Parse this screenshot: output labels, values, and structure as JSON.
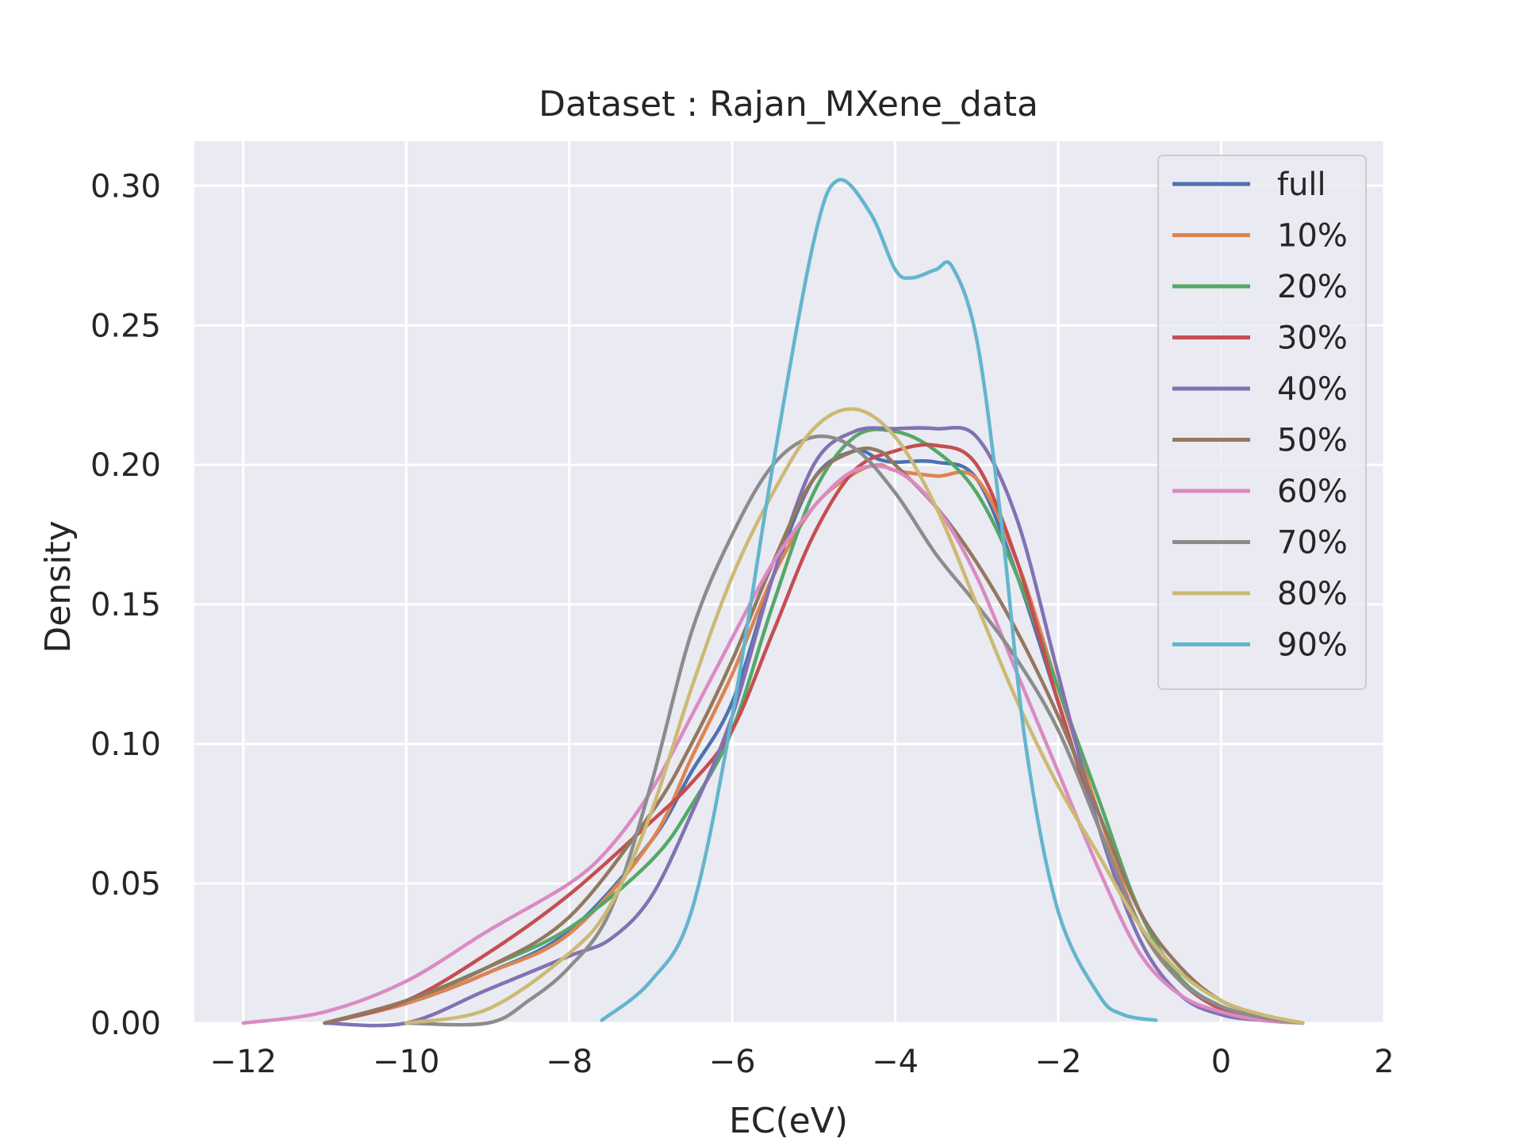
{
  "chart_data": {
    "type": "line",
    "title": "Dataset : Rajan_MXene_data",
    "xlabel": "EC(eV)",
    "ylabel": "Density",
    "xlim": [
      -12.6,
      2.0
    ],
    "ylim": [
      0,
      0.316
    ],
    "x_ticks": [
      -12,
      -10,
      -8,
      -6,
      -4,
      -2,
      0,
      2
    ],
    "x_tick_labels": [
      "−12",
      "−10",
      "−8",
      "−6",
      "−4",
      "−2",
      "0",
      "2"
    ],
    "y_ticks": [
      0.0,
      0.05,
      0.1,
      0.15,
      0.2,
      0.25,
      0.3
    ],
    "y_tick_labels": [
      "0.00",
      "0.05",
      "0.10",
      "0.15",
      "0.20",
      "0.25",
      "0.30"
    ],
    "grid": true,
    "legend_position": "top-right",
    "series": [
      {
        "name": "full",
        "color": "#4c72b0",
        "x": [
          -11.0,
          -10.0,
          -9.0,
          -8.0,
          -7.0,
          -6.5,
          -6.0,
          -5.5,
          -5.0,
          -4.5,
          -4.2,
          -4.0,
          -3.5,
          -3.0,
          -2.5,
          -2.0,
          -1.5,
          -1.0,
          -0.5,
          0.0,
          0.5,
          1.0
        ],
        "y": [
          0.0,
          0.007,
          0.018,
          0.033,
          0.065,
          0.09,
          0.115,
          0.16,
          0.195,
          0.205,
          0.202,
          0.201,
          0.201,
          0.195,
          0.16,
          0.115,
          0.07,
          0.035,
          0.015,
          0.006,
          0.002,
          0.0
        ]
      },
      {
        "name": "10%",
        "color": "#dd8452",
        "x": [
          -11.0,
          -10.0,
          -9.0,
          -8.0,
          -7.0,
          -6.5,
          -6.0,
          -5.5,
          -5.0,
          -4.5,
          -4.2,
          -4.0,
          -3.5,
          -3.0,
          -2.5,
          -2.0,
          -1.5,
          -1.0,
          -0.5,
          0.0,
          0.5,
          1.0
        ],
        "y": [
          0.0,
          0.007,
          0.018,
          0.032,
          0.065,
          0.095,
          0.125,
          0.16,
          0.185,
          0.197,
          0.2,
          0.198,
          0.196,
          0.195,
          0.165,
          0.12,
          0.075,
          0.035,
          0.015,
          0.006,
          0.002,
          0.0
        ]
      },
      {
        "name": "20%",
        "color": "#55a868",
        "x": [
          -11.0,
          -10.0,
          -9.0,
          -8.0,
          -7.0,
          -6.5,
          -6.0,
          -5.5,
          -5.0,
          -4.5,
          -4.0,
          -3.5,
          -3.0,
          -2.5,
          -2.0,
          -1.5,
          -1.0,
          -0.5,
          0.0,
          0.5,
          1.0
        ],
        "y": [
          0.0,
          0.008,
          0.02,
          0.034,
          0.058,
          0.078,
          0.105,
          0.15,
          0.19,
          0.21,
          0.212,
          0.205,
          0.19,
          0.16,
          0.12,
          0.08,
          0.04,
          0.016,
          0.006,
          0.002,
          0.0
        ]
      },
      {
        "name": "30%",
        "color": "#c44e52",
        "x": [
          -11.0,
          -10.0,
          -9.0,
          -8.0,
          -7.0,
          -6.5,
          -6.0,
          -5.5,
          -5.0,
          -4.5,
          -4.0,
          -3.5,
          -3.0,
          -2.5,
          -2.0,
          -1.5,
          -1.0,
          -0.5,
          0.0,
          0.5,
          1.0
        ],
        "y": [
          0.0,
          0.008,
          0.025,
          0.046,
          0.072,
          0.086,
          0.105,
          0.14,
          0.175,
          0.198,
          0.205,
          0.207,
          0.2,
          0.165,
          0.115,
          0.07,
          0.035,
          0.015,
          0.005,
          0.002,
          0.0
        ]
      },
      {
        "name": "40%",
        "color": "#8172b3",
        "x": [
          -11.0,
          -10.0,
          -9.0,
          -8.0,
          -7.5,
          -7.0,
          -6.5,
          -6.0,
          -5.5,
          -5.0,
          -4.5,
          -4.0,
          -3.5,
          -3.0,
          -2.5,
          -2.0,
          -1.5,
          -1.0,
          -0.5,
          0.0,
          0.5,
          1.0
        ],
        "y": [
          0.0,
          0.0,
          0.012,
          0.024,
          0.03,
          0.045,
          0.075,
          0.11,
          0.16,
          0.2,
          0.212,
          0.213,
          0.213,
          0.21,
          0.18,
          0.125,
          0.07,
          0.03,
          0.01,
          0.003,
          0.001,
          0.0
        ]
      },
      {
        "name": "50%",
        "color": "#937860",
        "x": [
          -11.0,
          -10.0,
          -9.0,
          -8.0,
          -7.0,
          -6.5,
          -6.0,
          -5.5,
          -5.0,
          -4.5,
          -4.2,
          -4.0,
          -3.5,
          -3.0,
          -2.5,
          -2.0,
          -1.5,
          -1.0,
          -0.5,
          0.0,
          0.5,
          1.0
        ],
        "y": [
          0.0,
          0.008,
          0.02,
          0.038,
          0.075,
          0.1,
          0.13,
          0.165,
          0.195,
          0.205,
          0.205,
          0.2,
          0.185,
          0.165,
          0.14,
          0.11,
          0.075,
          0.04,
          0.02,
          0.008,
          0.003,
          0.0
        ]
      },
      {
        "name": "60%",
        "color": "#da8bc3",
        "x": [
          -12.0,
          -11.0,
          -10.0,
          -9.0,
          -8.0,
          -7.5,
          -7.0,
          -6.5,
          -6.0,
          -5.5,
          -5.0,
          -4.5,
          -4.0,
          -3.5,
          -3.0,
          -2.5,
          -2.0,
          -1.5,
          -1.0,
          -0.5,
          0.0,
          0.5,
          1.0
        ],
        "y": [
          0.0,
          0.004,
          0.015,
          0.033,
          0.05,
          0.063,
          0.083,
          0.11,
          0.138,
          0.165,
          0.185,
          0.198,
          0.198,
          0.185,
          0.16,
          0.125,
          0.09,
          0.055,
          0.025,
          0.01,
          0.004,
          0.001,
          0.0
        ]
      },
      {
        "name": "70%",
        "color": "#8c8c8c",
        "x": [
          -10.0,
          -9.0,
          -8.5,
          -8.0,
          -7.5,
          -7.0,
          -6.5,
          -6.0,
          -5.5,
          -5.0,
          -4.5,
          -4.0,
          -3.5,
          -3.0,
          -2.5,
          -2.0,
          -1.5,
          -1.0,
          -0.5,
          0.0,
          0.5,
          1.0
        ],
        "y": [
          0.0,
          0.0,
          0.008,
          0.02,
          0.04,
          0.085,
          0.14,
          0.175,
          0.2,
          0.21,
          0.206,
          0.19,
          0.168,
          0.15,
          0.13,
          0.105,
          0.07,
          0.035,
          0.015,
          0.006,
          0.002,
          0.0
        ]
      },
      {
        "name": "80%",
        "color": "#ccb974",
        "x": [
          -10.0,
          -9.0,
          -8.0,
          -7.5,
          -7.0,
          -6.5,
          -6.0,
          -5.5,
          -5.0,
          -4.5,
          -4.0,
          -3.5,
          -3.0,
          -2.5,
          -2.0,
          -1.5,
          -1.0,
          -0.5,
          0.0,
          0.5,
          1.0
        ],
        "y": [
          0.0,
          0.005,
          0.025,
          0.042,
          0.075,
          0.12,
          0.16,
          0.19,
          0.213,
          0.22,
          0.21,
          0.185,
          0.15,
          0.115,
          0.085,
          0.06,
          0.035,
          0.018,
          0.008,
          0.003,
          0.0
        ]
      },
      {
        "name": "90%",
        "color": "#64b5cd",
        "x": [
          -7.6,
          -7.0,
          -6.5,
          -6.0,
          -5.5,
          -5.0,
          -4.7,
          -4.3,
          -4.0,
          -3.8,
          -3.5,
          -3.3,
          -3.0,
          -2.7,
          -2.4,
          -2.0,
          -1.5,
          -1.2,
          -0.8
        ],
        "y": [
          0.001,
          0.015,
          0.04,
          0.11,
          0.2,
          0.28,
          0.302,
          0.29,
          0.27,
          0.267,
          0.27,
          0.271,
          0.245,
          0.18,
          0.1,
          0.04,
          0.01,
          0.003,
          0.001
        ]
      }
    ]
  }
}
